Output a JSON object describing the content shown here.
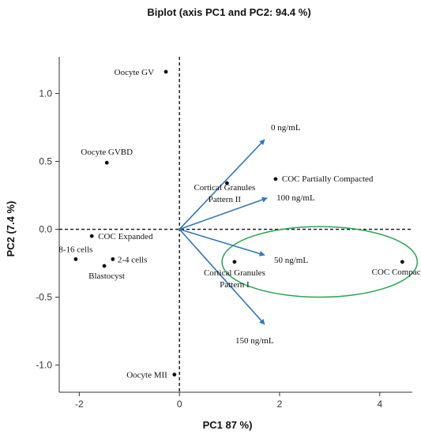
{
  "chart_data": {
    "type": "scatter",
    "subtype": "biplot",
    "title": "Biplot (axis PC1 and PC2: 94.4 %)",
    "xlabel": "PC1 87 %)",
    "ylabel": "PC2 (7.4 %)",
    "xlim": [
      -2.4,
      4.65
    ],
    "ylim": [
      -1.2,
      1.27
    ],
    "xticks": [
      -2,
      0,
      2,
      4
    ],
    "yticks": [
      1.0,
      0.5,
      0.0,
      -0.5,
      -1.0
    ],
    "xtick_labels": [
      "-2",
      "0",
      "2",
      "4"
    ],
    "ytick_labels": [
      "1.0",
      "0.5",
      "0.0",
      "-0.5",
      "-1.0"
    ],
    "grid": false,
    "reference_lines": {
      "x": 0,
      "y": 0,
      "style": "dashed"
    },
    "colors": {
      "points": "#111111",
      "vectors": "#2f79bd",
      "ellipse": "#27a650",
      "axes": "#333333"
    },
    "points": [
      {
        "label": "Oocyte GV",
        "x": -0.27,
        "y": 1.16
      },
      {
        "label": "Oocyte GVBD",
        "x": -1.45,
        "y": 0.49
      },
      {
        "label": "Cortical Granules\nPattern II",
        "x": 0.95,
        "y": 0.34
      },
      {
        "label": "COC Partially Compacted",
        "x": 1.92,
        "y": 0.37
      },
      {
        "label": "COC Expanded",
        "x": -1.75,
        "y": -0.05
      },
      {
        "label": "8-16 cells",
        "x": -2.07,
        "y": -0.22
      },
      {
        "label": "2-4 cells",
        "x": -1.33,
        "y": -0.22
      },
      {
        "label": "Blastocyst",
        "x": -1.5,
        "y": -0.27
      },
      {
        "label": "Cortical Granules\nPattern I",
        "x": 1.1,
        "y": -0.24
      },
      {
        "label": "COC Compacted",
        "x": 4.45,
        "y": -0.24
      },
      {
        "label": "Oocyte MII",
        "x": -0.1,
        "y": -1.07
      }
    ],
    "vectors": [
      {
        "label": "0 ng/mL",
        "x": 1.7,
        "y": 0.66
      },
      {
        "label": "100 ng/mL",
        "x": 1.75,
        "y": 0.23
      },
      {
        "label": "50 ng/mL",
        "x": 1.7,
        "y": -0.19
      },
      {
        "label": "150 ng/mL",
        "x": 1.7,
        "y": -0.7
      }
    ],
    "highlight_ellipse": {
      "cx": 2.8,
      "cy": -0.24,
      "rx": 1.95,
      "ry": 0.26
    }
  }
}
